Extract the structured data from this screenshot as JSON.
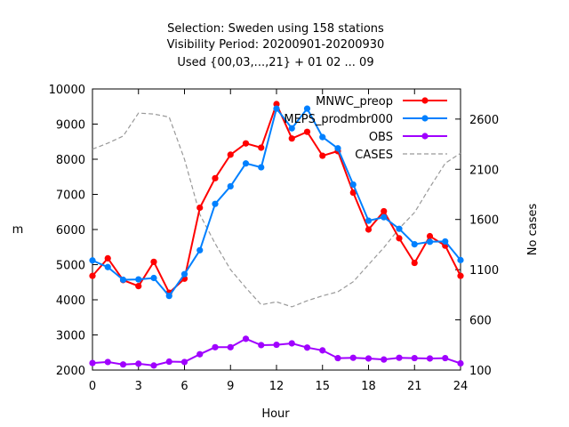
{
  "chart_data": {
    "type": "line",
    "title_lines": [
      "Selection: Sweden using   158 stations",
      "Visibility   Period: 20200901-20200930",
      "Used {00,03,...,21} + 01 02 ... 09"
    ],
    "xlabel": "Hour",
    "ylabel": "m",
    "y2label": "No cases",
    "xlim": [
      0,
      24
    ],
    "ylim": [
      2000,
      10000
    ],
    "y2lim": [
      100,
      2900
    ],
    "xticks": [
      "0",
      "3",
      "6",
      "9",
      "12",
      "15",
      "18",
      "21",
      "24"
    ],
    "yticks": [
      "2000",
      "3000",
      "4000",
      "5000",
      "6000",
      "7000",
      "8000",
      "9000",
      "10000"
    ],
    "y2ticks": [
      "100",
      "600",
      "1100",
      "1600",
      "2100",
      "2600"
    ],
    "grid": false,
    "legend_position": "top-right",
    "x": [
      0,
      1,
      2,
      3,
      4,
      5,
      6,
      7,
      8,
      9,
      10,
      11,
      12,
      13,
      14,
      15,
      16,
      17,
      18,
      19,
      20,
      21,
      22,
      23,
      24
    ],
    "series": [
      {
        "name": "MNWC_preop",
        "color": "#ff0000",
        "axis": "left",
        "marker": true,
        "values": [
          4680,
          5180,
          4560,
          4390,
          5080,
          4200,
          4600,
          6620,
          7460,
          8130,
          8450,
          8330,
          9570,
          8590,
          8780,
          8100,
          8230,
          7050,
          6000,
          6520,
          5750,
          5050,
          5810,
          5540,
          4680
        ]
      },
      {
        "name": "MEPS_prodmbr000",
        "color": "#0080ff",
        "axis": "left",
        "marker": true,
        "values": [
          5120,
          4930,
          4570,
          4580,
          4620,
          4110,
          4730,
          5410,
          6730,
          7230,
          7880,
          7770,
          9440,
          8880,
          9440,
          8630,
          8310,
          7280,
          6250,
          6350,
          6020,
          5580,
          5650,
          5660,
          5130
        ]
      },
      {
        "name": "OBS",
        "color": "#a000ff",
        "axis": "left",
        "marker": true,
        "values": [
          2200,
          2230,
          2160,
          2180,
          2130,
          2240,
          2230,
          2450,
          2650,
          2650,
          2890,
          2710,
          2720,
          2760,
          2640,
          2560,
          2340,
          2350,
          2330,
          2300,
          2350,
          2340,
          2330,
          2340,
          2190
        ]
      },
      {
        "name": "CASES",
        "color": "#999999",
        "axis": "right",
        "marker": false,
        "dashed": true,
        "values": [
          2300,
          2360,
          2430,
          2660,
          2650,
          2620,
          2200,
          1650,
          1360,
          1100,
          920,
          750,
          780,
          730,
          790,
          840,
          880,
          980,
          1150,
          1320,
          1510,
          1670,
          1920,
          2160,
          2260
        ]
      }
    ]
  }
}
